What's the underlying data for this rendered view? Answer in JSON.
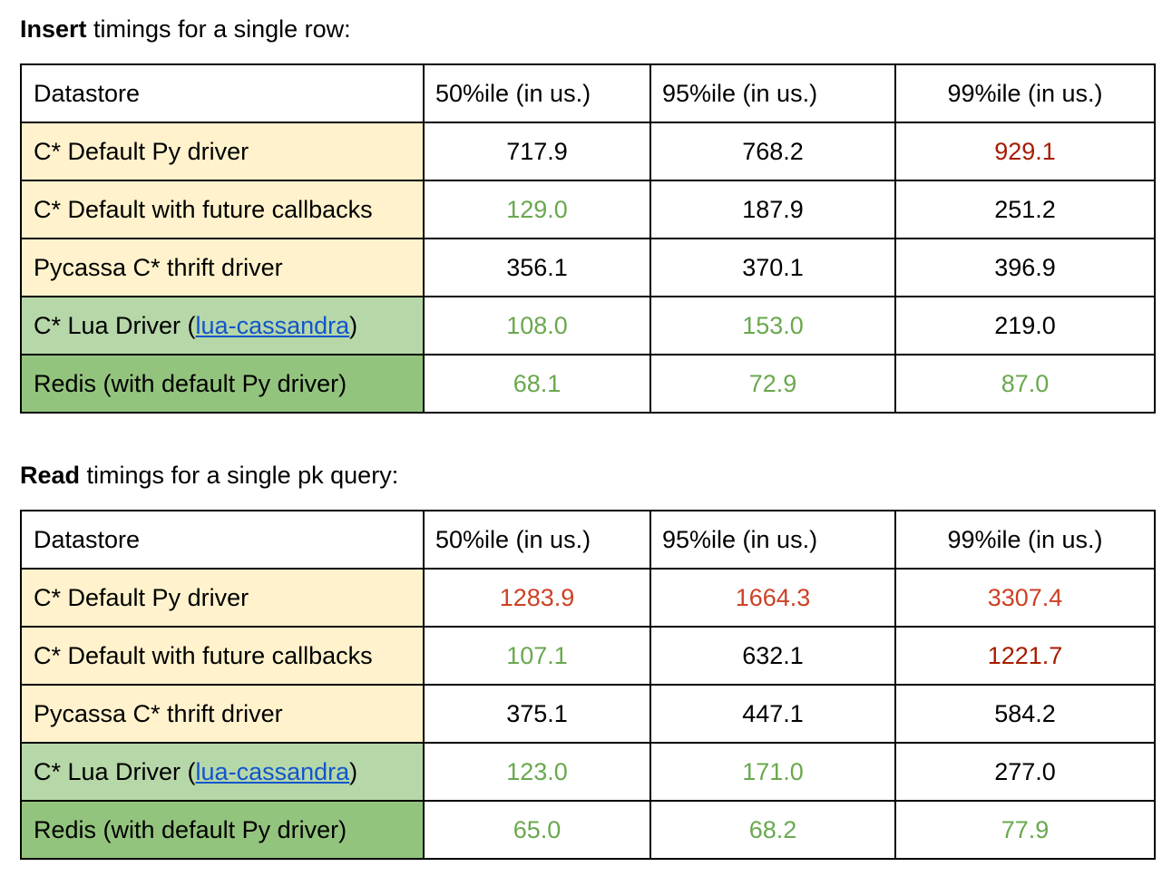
{
  "insert": {
    "title_bold": "Insert",
    "title_rest": " timings for a single row:",
    "headers": [
      "Datastore",
      "50%ile (in us.)",
      "95%ile (in us.)",
      "99%ile (in us.)"
    ],
    "rows": [
      {
        "name": "C* Default Py driver",
        "bg": "#fff2cc",
        "values": [
          "717.9",
          "768.2",
          "929.1"
        ],
        "colors": [
          "#000000",
          "#000000",
          "#a61c00"
        ]
      },
      {
        "name": "C* Default with future callbacks",
        "bg": "#fff2cc",
        "values": [
          "129.0",
          "187.9",
          "251.2"
        ],
        "colors": [
          "#6aa84f",
          "#000000",
          "#000000"
        ]
      },
      {
        "name": "Pycassa C* thrift driver",
        "bg": "#fff2cc",
        "values": [
          "356.1",
          "370.1",
          "396.9"
        ],
        "colors": [
          "#000000",
          "#000000",
          "#000000"
        ]
      },
      {
        "name_prefix": "C* Lua Driver (",
        "link": "lua-cassandra",
        "name_suffix": ")",
        "bg": "#b6d7a8",
        "values": [
          "108.0",
          "153.0",
          "219.0"
        ],
        "colors": [
          "#6aa84f",
          "#6aa84f",
          "#000000"
        ]
      },
      {
        "name": "Redis (with default Py driver)",
        "bg": "#93c47d",
        "values": [
          "68.1",
          "72.9",
          "87.0"
        ],
        "colors": [
          "#6aa84f",
          "#6aa84f",
          "#6aa84f"
        ]
      }
    ]
  },
  "read": {
    "title_bold": "Read",
    "title_rest": " timings for a single pk query:",
    "headers": [
      "Datastore",
      "50%ile (in us.)",
      "95%ile (in us.)",
      "99%ile (in us.)"
    ],
    "rows": [
      {
        "name": "C* Default Py driver",
        "bg": "#fff2cc",
        "values": [
          "1283.9",
          "1664.3",
          "3307.4"
        ],
        "colors": [
          "#cc4125",
          "#cc4125",
          "#cc4125"
        ]
      },
      {
        "name": "C* Default with future callbacks",
        "bg": "#fff2cc",
        "values": [
          "107.1",
          "632.1",
          "1221.7"
        ],
        "colors": [
          "#6aa84f",
          "#000000",
          "#a61c00"
        ]
      },
      {
        "name": "Pycassa C* thrift driver",
        "bg": "#fff2cc",
        "values": [
          "375.1",
          "447.1",
          "584.2"
        ],
        "colors": [
          "#000000",
          "#000000",
          "#000000"
        ]
      },
      {
        "name_prefix": "C* Lua Driver (",
        "link": "lua-cassandra",
        "name_suffix": ")",
        "bg": "#b6d7a8",
        "values": [
          "123.0",
          "171.0",
          "277.0"
        ],
        "colors": [
          "#6aa84f",
          "#6aa84f",
          "#000000"
        ]
      },
      {
        "name": "Redis (with default Py driver)",
        "bg": "#93c47d",
        "values": [
          "65.0",
          "68.2",
          "77.9"
        ],
        "colors": [
          "#6aa84f",
          "#6aa84f",
          "#6aa84f"
        ]
      }
    ]
  }
}
